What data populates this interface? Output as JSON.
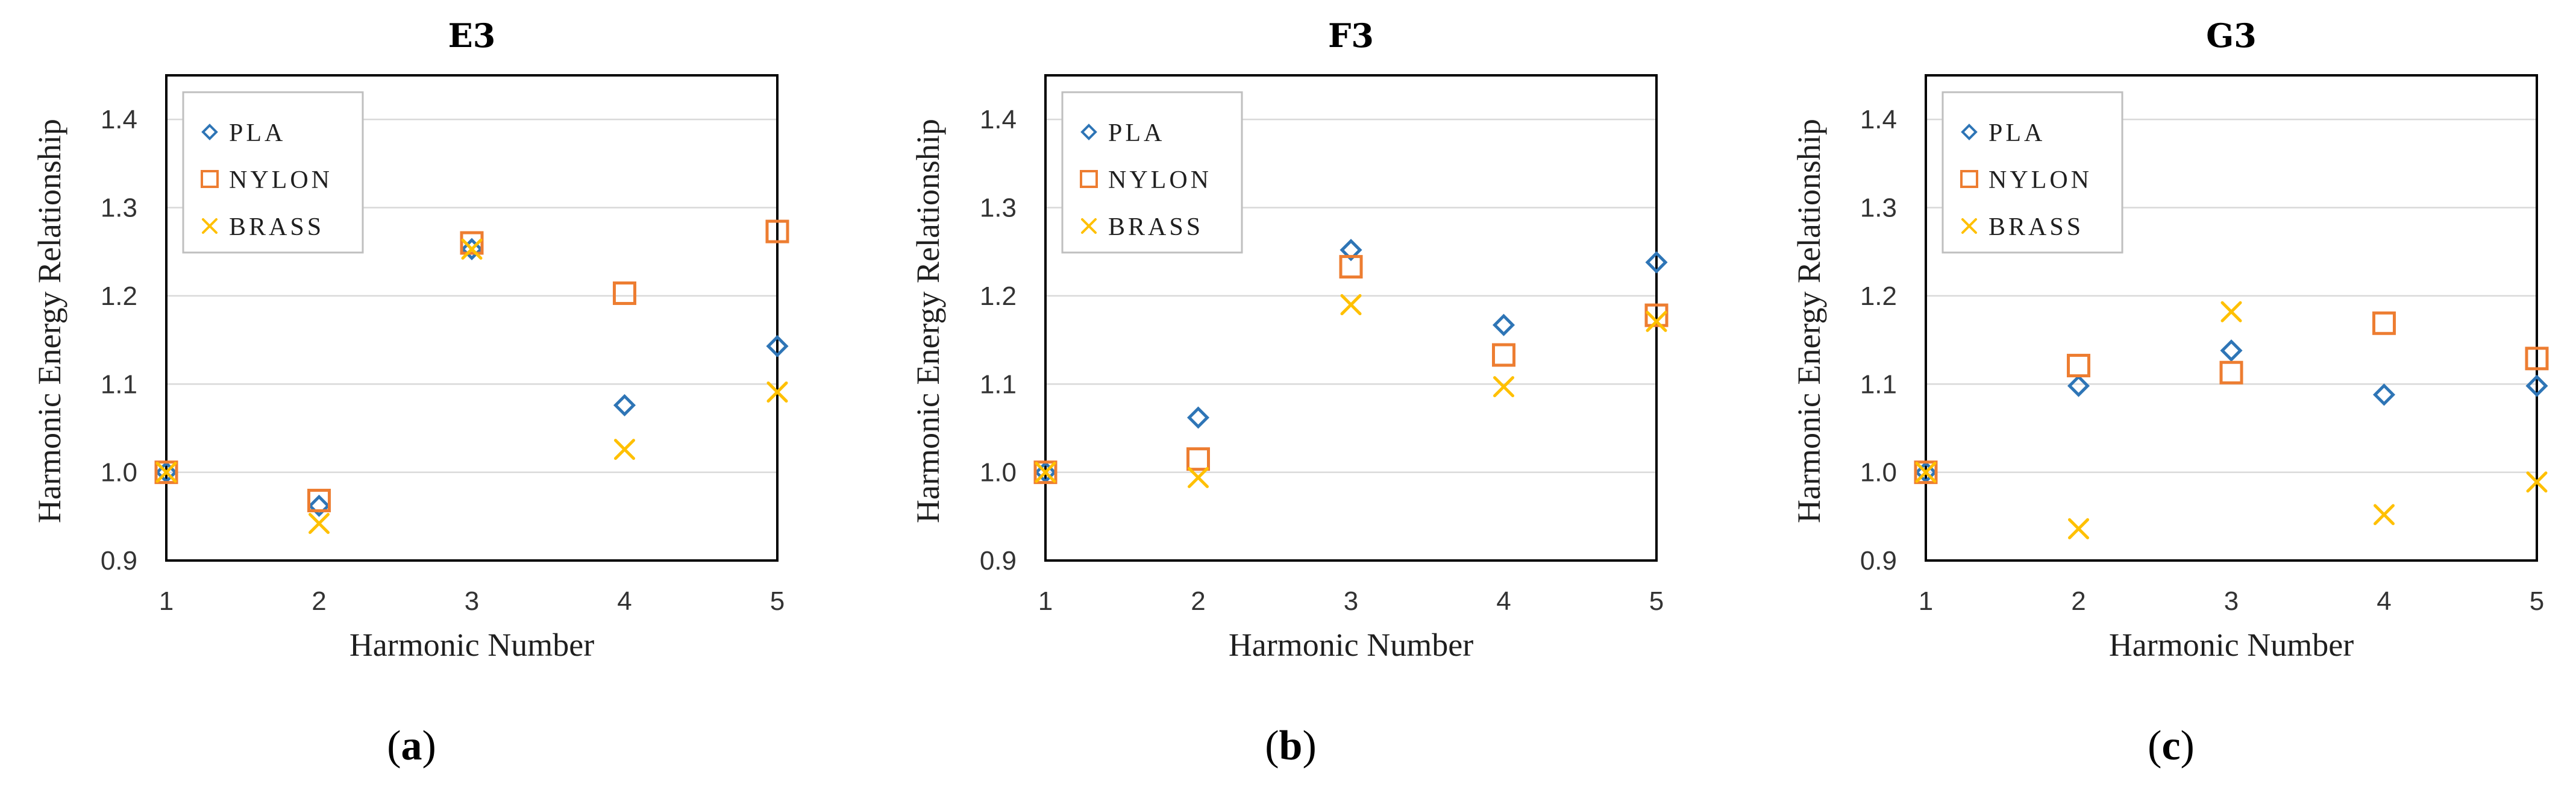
{
  "colors": {
    "PLA": "#2e75b6",
    "NYLON": "#ed7d31",
    "BRASS": "#ffc000",
    "grid": "#d9d9d9",
    "axis": "#000000"
  },
  "chart_data": [
    {
      "type": "scatter",
      "panel_label": "a",
      "title": "E3",
      "xlabel": "Harmonic Number",
      "ylabel": "Harmonic Energy Relationship",
      "xlim": [
        1,
        5
      ],
      "ylim": [
        0.9,
        1.45
      ],
      "xticks": [
        1,
        2,
        3,
        4,
        5
      ],
      "yticks": [
        0.9,
        1.0,
        1.1,
        1.2,
        1.3,
        1.4
      ],
      "ytick_labels": [
        "0.9",
        "1.0",
        "1.1",
        "1.2",
        "1.3",
        "1.4"
      ],
      "grid": true,
      "legend_position": "top-left",
      "series": [
        {
          "name": "PLA",
          "marker": "diamond",
          "x": [
            1,
            2,
            3,
            4,
            5
          ],
          "values": [
            1.0,
            0.962,
            1.253,
            1.076,
            1.143
          ]
        },
        {
          "name": "NYLON",
          "marker": "square",
          "x": [
            1,
            2,
            3,
            4,
            5
          ],
          "values": [
            1.0,
            0.968,
            1.26,
            1.203,
            1.273
          ]
        },
        {
          "name": "BRASS",
          "marker": "x",
          "x": [
            1,
            2,
            3,
            4,
            5
          ],
          "values": [
            1.0,
            0.942,
            1.253,
            1.026,
            1.091
          ]
        }
      ]
    },
    {
      "type": "scatter",
      "panel_label": "b",
      "title": "F3",
      "xlabel": "Harmonic Number",
      "ylabel": "Harmonic Energy Relationship",
      "xlim": [
        1,
        5
      ],
      "ylim": [
        0.9,
        1.45
      ],
      "xticks": [
        1,
        2,
        3,
        4,
        5
      ],
      "yticks": [
        0.9,
        1.0,
        1.1,
        1.2,
        1.3,
        1.4
      ],
      "ytick_labels": [
        "0.9",
        "1.0",
        "1.1",
        "1.2",
        "1.3",
        "1.4"
      ],
      "grid": true,
      "legend_position": "top-left",
      "series": [
        {
          "name": "PLA",
          "marker": "diamond",
          "x": [
            1,
            2,
            3,
            4,
            5
          ],
          "values": [
            1.0,
            1.062,
            1.252,
            1.167,
            1.238
          ]
        },
        {
          "name": "NYLON",
          "marker": "square",
          "x": [
            1,
            2,
            3,
            4,
            5
          ],
          "values": [
            1.0,
            1.015,
            1.233,
            1.133,
            1.178
          ]
        },
        {
          "name": "BRASS",
          "marker": "x",
          "x": [
            1,
            2,
            3,
            4,
            5
          ],
          "values": [
            1.0,
            0.994,
            1.19,
            1.097,
            1.171
          ]
        }
      ]
    },
    {
      "type": "scatter",
      "panel_label": "c",
      "title": "G3",
      "xlabel": "Harmonic Number",
      "ylabel": "Harmonic Energy Relationship",
      "xlim": [
        1,
        5
      ],
      "ylim": [
        0.9,
        1.45
      ],
      "xticks": [
        1,
        2,
        3,
        4,
        5
      ],
      "yticks": [
        0.9,
        1.0,
        1.1,
        1.2,
        1.3,
        1.4
      ],
      "ytick_labels": [
        "0.9",
        "1.0",
        "1.1",
        "1.2",
        "1.3",
        "1.4"
      ],
      "grid": true,
      "legend_position": "top-left",
      "series": [
        {
          "name": "PLA",
          "marker": "diamond",
          "x": [
            1,
            2,
            3,
            4,
            5
          ],
          "values": [
            1.0,
            1.098,
            1.138,
            1.088,
            1.098
          ]
        },
        {
          "name": "NYLON",
          "marker": "square",
          "x": [
            1,
            2,
            3,
            4,
            5
          ],
          "values": [
            1.0,
            1.121,
            1.113,
            1.169,
            1.129
          ]
        },
        {
          "name": "BRASS",
          "marker": "x",
          "x": [
            1,
            2,
            3,
            4,
            5
          ],
          "values": [
            1.0,
            0.936,
            1.182,
            0.952,
            0.989
          ]
        }
      ]
    }
  ]
}
